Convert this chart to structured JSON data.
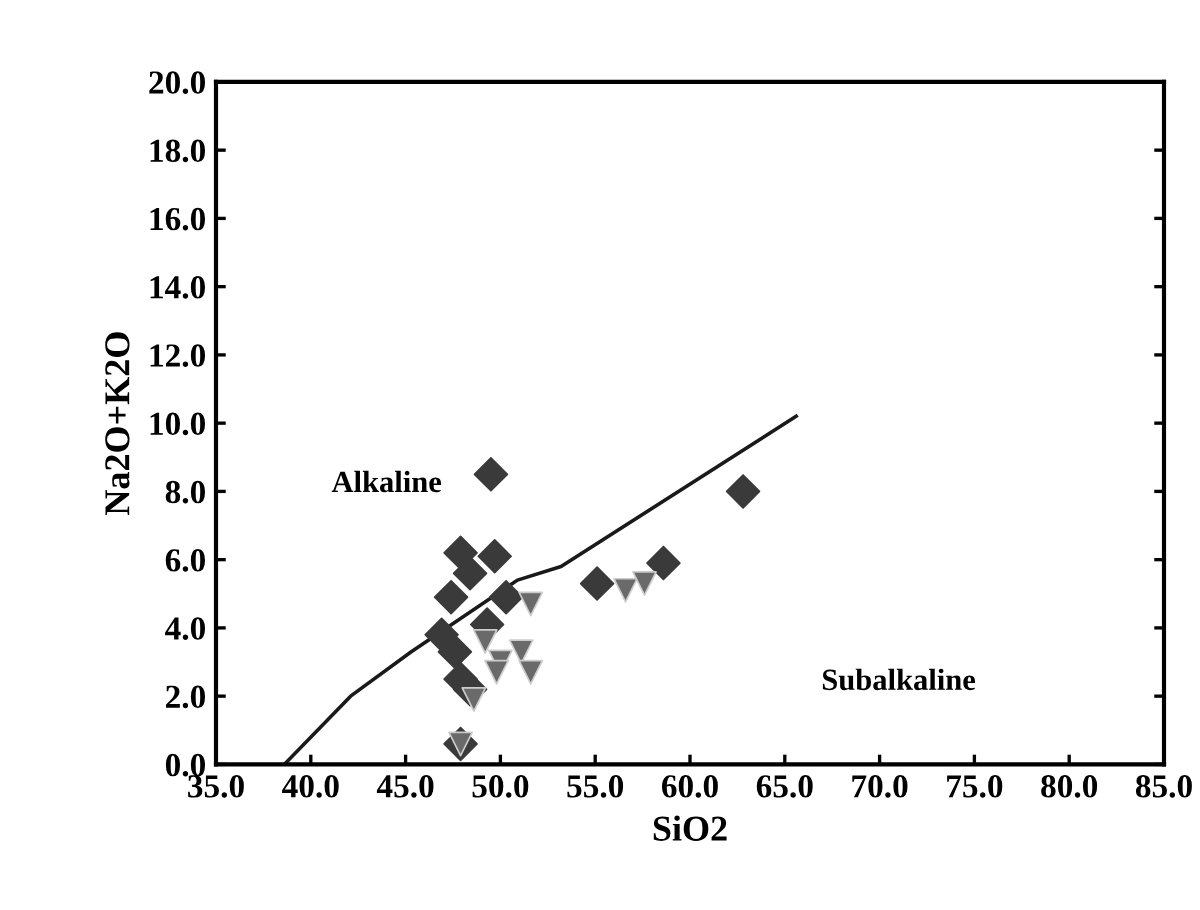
{
  "chart_data": {
    "type": "scatter",
    "xlabel": "SiO2",
    "ylabel": "Na2O+K2O",
    "xlim": [
      35.0,
      85.0
    ],
    "ylim": [
      0.0,
      20.0
    ],
    "xticks": [
      {
        "value": 35,
        "label": "35.0"
      },
      {
        "value": 40,
        "label": "40.0"
      },
      {
        "value": 45,
        "label": "45.0"
      },
      {
        "value": 50,
        "label": "50.0"
      },
      {
        "value": 55,
        "label": "55.0"
      },
      {
        "value": 60,
        "label": "60.0"
      },
      {
        "value": 65,
        "label": "65.0"
      },
      {
        "value": 70,
        "label": "70.0"
      },
      {
        "value": 75,
        "label": "75.0"
      },
      {
        "value": 80,
        "label": "80.0"
      },
      {
        "value": 85,
        "label": "85.0"
      }
    ],
    "yticks": [
      {
        "value": 0,
        "label": "0.0"
      },
      {
        "value": 2,
        "label": "2.0"
      },
      {
        "value": 4,
        "label": "4.0"
      },
      {
        "value": 6,
        "label": "6.0"
      },
      {
        "value": 8,
        "label": "8.0"
      },
      {
        "value": 10,
        "label": "10.0"
      },
      {
        "value": 12,
        "label": "12.0"
      },
      {
        "value": 14,
        "label": "14.0"
      },
      {
        "value": 16,
        "label": "16.0"
      },
      {
        "value": 18,
        "label": "18.0"
      },
      {
        "value": 20,
        "label": "20.0"
      }
    ],
    "grid": false,
    "legend": false,
    "series": [
      {
        "marker": "diamond",
        "color": "#3a3a3a",
        "x": [
          49.5,
          47.9,
          49.7,
          48.4,
          47.4,
          55.1,
          50.3,
          46.9,
          47.6,
          49.3,
          47.9,
          48.4,
          58.6,
          62.8,
          47.9
        ],
        "values": [
          8.5,
          6.2,
          6.1,
          5.6,
          4.9,
          5.3,
          4.9,
          3.8,
          3.3,
          4.1,
          2.5,
          2.2,
          5.9,
          8.0,
          0.6
        ]
      },
      {
        "marker": "triangle",
        "color": "#6a6a6a",
        "x": [
          51.6,
          49.2,
          50.0,
          51.1,
          51.6,
          49.8,
          48.6,
          47.9,
          56.6,
          57.6
        ],
        "values": [
          4.7,
          3.6,
          3.0,
          3.3,
          2.7,
          2.7,
          1.9,
          0.6,
          5.1,
          5.3
        ]
      },
      {
        "type": "line",
        "color": "#1a1a1a",
        "line_style": "solid",
        "x": [
          38.6,
          42.1,
          45.3,
          50.9,
          53.2,
          65.6
        ],
        "values": [
          0.0,
          2.0,
          3.3,
          5.4,
          5.8,
          10.2
        ]
      }
    ],
    "annotations": [
      "Alkaline",
      "Subalkaline"
    ]
  }
}
